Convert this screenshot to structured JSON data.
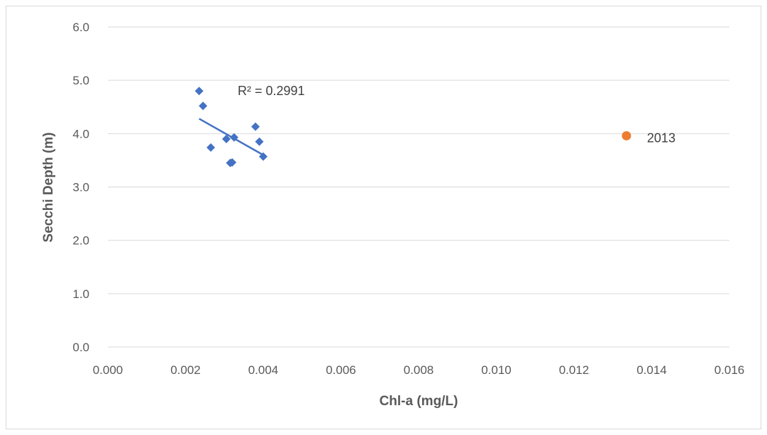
{
  "chart_data": {
    "type": "scatter",
    "title": "",
    "xlabel": "Chl-a (mg/L)",
    "ylabel": "Secchi Depth (m)",
    "xlim": [
      0,
      0.016
    ],
    "ylim": [
      0,
      6
    ],
    "x_ticks": [
      "0.000",
      "0.002",
      "0.004",
      "0.006",
      "0.008",
      "0.010",
      "0.012",
      "0.014",
      "0.016"
    ],
    "y_ticks": [
      "0.0",
      "1.0",
      "2.0",
      "3.0",
      "4.0",
      "5.0",
      "6.0"
    ],
    "grid": "horizontal",
    "legend": "none",
    "series": [
      {
        "marker": "diamond",
        "color": "#4472c4",
        "points": [
          {
            "x": 0.00235,
            "y": 4.8
          },
          {
            "x": 0.00245,
            "y": 4.52
          },
          {
            "x": 0.00265,
            "y": 3.74
          },
          {
            "x": 0.00305,
            "y": 3.9
          },
          {
            "x": 0.00315,
            "y": 3.45
          },
          {
            "x": 0.0032,
            "y": 3.46
          },
          {
            "x": 0.00325,
            "y": 3.93
          },
          {
            "x": 0.0038,
            "y": 4.13
          },
          {
            "x": 0.0039,
            "y": 3.85
          },
          {
            "x": 0.004,
            "y": 3.57
          }
        ],
        "trendline": {
          "type": "linear",
          "from": {
            "x": 0.00235,
            "y": 4.28
          },
          "to": {
            "x": 0.004,
            "y": 3.6
          },
          "label": "R² = 0.2991"
        }
      },
      {
        "marker": "circle",
        "color": "#ed7d31",
        "points": [
          {
            "x": 0.01335,
            "y": 3.96,
            "label": "2013"
          }
        ]
      }
    ]
  }
}
